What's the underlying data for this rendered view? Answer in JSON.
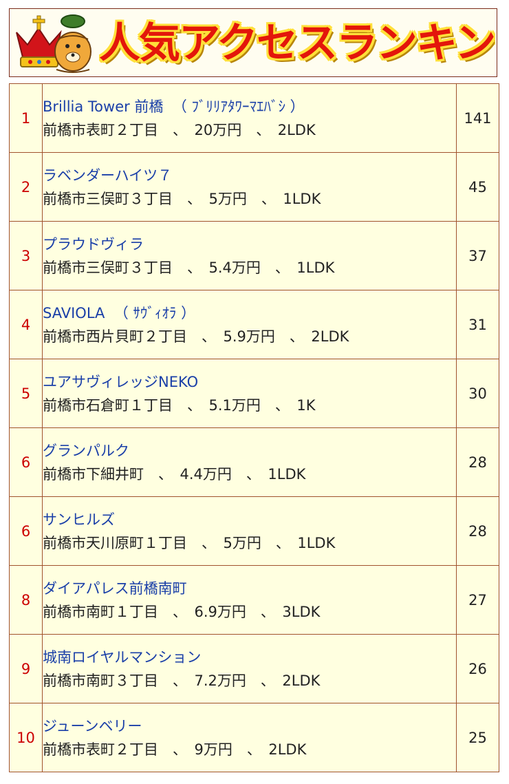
{
  "header": {
    "title": "人気アクセスランキング",
    "mascot_icon": "crown-mascot-icon",
    "title_color": "#e3160b",
    "title_outline_color": "#ffe03a"
  },
  "colors": {
    "cell_background": "#ffffe0",
    "border": "#a0522d",
    "rank": "#cc0000",
    "link": "#1a3fa8"
  },
  "rankings": [
    {
      "rank": "1",
      "name": "Brillia Tower 前橋  （ ﾌﾞﾘﾘｱﾀﾜｰﾏｴﾊﾞｼ ）",
      "detail": "前橋市表町２丁目　、　20万円　、　2LDK",
      "count": "141"
    },
    {
      "rank": "2",
      "name": "ラベンダーハイツ７",
      "detail": "前橋市三俣町３丁目　、　5万円　、　1LDK",
      "count": "45"
    },
    {
      "rank": "3",
      "name": "プラウドヴィラ",
      "detail": "前橋市三俣町３丁目　、　5.4万円　、　1LDK",
      "count": "37"
    },
    {
      "rank": "4",
      "name": "SAVIOLA  （ ｻｳﾞｨｵﾗ ）",
      "detail": "前橋市西片貝町２丁目　、　5.9万円　、　2LDK",
      "count": "31"
    },
    {
      "rank": "5",
      "name": "ユアサヴィレッジNEKO",
      "detail": "前橋市石倉町１丁目　、　5.1万円　、　1K",
      "count": "30"
    },
    {
      "rank": "6",
      "name": "グランパルク",
      "detail": "前橋市下細井町　、　4.4万円　、　1LDK",
      "count": "28"
    },
    {
      "rank": "6",
      "name": "サンヒルズ",
      "detail": "前橋市天川原町１丁目　、　5万円　、　1LDK",
      "count": "28"
    },
    {
      "rank": "8",
      "name": "ダイアパレス前橋南町",
      "detail": "前橋市南町１丁目　、　6.9万円　、　3LDK",
      "count": "27"
    },
    {
      "rank": "9",
      "name": "城南ロイヤルマンション",
      "detail": "前橋市南町３丁目　、　7.2万円　、　2LDK",
      "count": "26"
    },
    {
      "rank": "10",
      "name": "ジューンベリー",
      "detail": "前橋市表町２丁目　、　9万円　、　2LDK",
      "count": "25"
    }
  ]
}
